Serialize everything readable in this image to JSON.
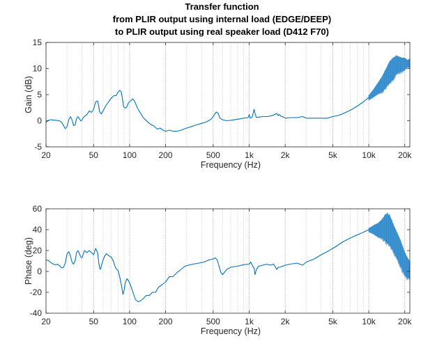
{
  "title_lines": [
    "Transfer function",
    "from PLIR output using internal load (EDGE/DEEP)",
    "to PLIR output using real speaker load (D412 F70)"
  ],
  "colors": {
    "series": "#0072bd",
    "axis": "#262626",
    "grid": "#b0b0b0"
  },
  "chart_data": [
    {
      "type": "line",
      "name": "gain-plot",
      "xlabel": "Frequency (Hz)",
      "ylabel": "Gain (dB)",
      "xscale": "log",
      "xlim": [
        20,
        22050
      ],
      "ylim": [
        -5,
        15
      ],
      "xticks": [
        20,
        50,
        100,
        200,
        500,
        1000,
        2000,
        5000,
        10000,
        20000
      ],
      "xtick_labels": [
        "20",
        "50",
        "100",
        "200",
        "500",
        "1k",
        "2k",
        "5k",
        "10k",
        "20k"
      ],
      "yticks": [
        -5,
        0,
        5,
        10,
        15
      ],
      "ytick_labels": [
        "-5",
        "0",
        "5",
        "10",
        "15"
      ],
      "grid": "x-minor-and-major",
      "series": [
        {
          "name": "Gain",
          "x": [
            20,
            21,
            22,
            24,
            26,
            27,
            28,
            29,
            30,
            31,
            32,
            33,
            34,
            35,
            36,
            37,
            38,
            39,
            40,
            41,
            42,
            44,
            46,
            48,
            50,
            52,
            54,
            55,
            56,
            58,
            60,
            63,
            66,
            70,
            74,
            77,
            80,
            83,
            85,
            87,
            89,
            92,
            95,
            98,
            102,
            106,
            110,
            115,
            120,
            130,
            140,
            150,
            160,
            170,
            180,
            190,
            200,
            215,
            230,
            250,
            270,
            300,
            330,
            360,
            400,
            440,
            480,
            510,
            530,
            550,
            570,
            600,
            650,
            700,
            800,
            900,
            980,
            1000,
            1020,
            1060,
            1100,
            1120,
            1150,
            1200,
            1300,
            1400,
            1500,
            1600,
            1700,
            1750,
            1800,
            1850,
            1900,
            2000,
            2200,
            2500,
            2800,
            3000,
            3500,
            4000,
            4500,
            5000,
            5500,
            6000,
            7000,
            8000,
            9000,
            10000
          ],
          "values": [
            -0.3,
            0.1,
            0.2,
            0.1,
            0.0,
            -0.3,
            -0.9,
            -1.5,
            -1.1,
            0.2,
            0.8,
            0.2,
            -0.9,
            -0.8,
            0.4,
            0.8,
            0.4,
            0.0,
            0.1,
            0.6,
            0.9,
            1.2,
            1.9,
            1.6,
            2.2,
            3.6,
            3.8,
            3.0,
            1.8,
            1.3,
            1.9,
            2.8,
            3.5,
            4.3,
            4.8,
            4.8,
            5.5,
            5.8,
            5.6,
            4.4,
            2.7,
            2.4,
            2.7,
            3.5,
            3.8,
            4.2,
            3.8,
            2.7,
            1.9,
            0.6,
            -0.1,
            -0.7,
            -1.0,
            -1.6,
            -1.4,
            -1.8,
            -2.0,
            -1.8,
            -2.0,
            -2.0,
            -1.8,
            -1.4,
            -1.1,
            -0.8,
            -0.5,
            -0.2,
            0.3,
            1.1,
            1.7,
            1.4,
            0.5,
            0.2,
            0.0,
            0.1,
            0.3,
            0.5,
            0.6,
            1.2,
            0.5,
            0.7,
            2.2,
            1.4,
            0.6,
            0.7,
            0.8,
            0.8,
            0.9,
            1.1,
            1.4,
            1.0,
            1.2,
            0.8,
            0.8,
            0.5,
            0.6,
            0.6,
            0.8,
            0.5,
            0.5,
            0.5,
            0.5,
            0.8,
            1.0,
            1.3,
            2.0,
            2.8,
            3.6,
            4.5
          ]
        }
      ],
      "noisy_band": {
        "x": [
          10000,
          11000,
          12000,
          13000,
          14000,
          15000,
          16000,
          17000,
          18000,
          19000,
          20000,
          21000,
          22050
        ],
        "upper": [
          4.8,
          6.0,
          7.3,
          8.5,
          10.0,
          11.3,
          12.0,
          12.4,
          12.2,
          12.0,
          12.0,
          11.6,
          11.8
        ],
        "lower": [
          4.0,
          4.6,
          5.2,
          5.6,
          6.5,
          7.3,
          8.0,
          9.0,
          9.3,
          9.5,
          9.8,
          10.3,
          10.2
        ]
      }
    },
    {
      "type": "line",
      "name": "phase-plot",
      "xlabel": "Frequency (Hz)",
      "ylabel": "Phase (deg)",
      "xscale": "log",
      "xlim": [
        20,
        22050
      ],
      "ylim": [
        -40,
        60
      ],
      "xticks": [
        20,
        50,
        100,
        200,
        500,
        1000,
        2000,
        5000,
        10000,
        20000
      ],
      "xtick_labels": [
        "20",
        "50",
        "100",
        "200",
        "500",
        "1k",
        "2k",
        "5k",
        "10k",
        "20k"
      ],
      "yticks": [
        -40,
        -20,
        0,
        20,
        40,
        60
      ],
      "ytick_labels": [
        "-40",
        "-20",
        "0",
        "20",
        "40",
        "60"
      ],
      "grid": "x-minor-and-major",
      "series": [
        {
          "name": "Phase",
          "x": [
            20,
            21,
            22,
            23,
            24,
            25,
            26,
            27,
            28,
            29,
            30,
            31,
            32,
            33,
            34,
            35,
            36,
            37,
            38,
            39,
            40,
            42,
            44,
            46,
            48,
            50,
            52,
            54,
            55,
            56,
            57,
            58,
            60,
            62,
            64,
            67,
            70,
            73,
            76,
            78,
            80,
            83,
            86,
            88,
            90,
            92,
            95,
            98,
            100,
            104,
            108,
            112,
            118,
            124,
            130,
            138,
            146,
            155,
            165,
            175,
            185,
            200,
            215,
            230,
            250,
            270,
            290,
            310,
            340,
            380,
            420,
            460,
            500,
            520,
            540,
            560,
            580,
            600,
            650,
            700,
            800,
            900,
            1000,
            1030,
            1070,
            1100,
            1120,
            1150,
            1200,
            1300,
            1400,
            1500,
            1600,
            1700,
            1750,
            1800,
            1900,
            2000,
            2200,
            2500,
            2800,
            3000,
            3500,
            4000,
            4500,
            5000,
            5500,
            6000,
            7000,
            8000,
            9000,
            10000
          ],
          "values": [
            11.0,
            10.5,
            8.5,
            7.0,
            6.5,
            6.8,
            5.5,
            3.5,
            4.0,
            8.0,
            17.0,
            19.0,
            15.0,
            9.0,
            7.0,
            10.0,
            18.0,
            20.0,
            17.0,
            14.0,
            13.0,
            20.0,
            18.0,
            20.0,
            18.0,
            16.0,
            22.0,
            18.0,
            10.0,
            4.0,
            2.0,
            5.0,
            11.0,
            15.0,
            17.0,
            15.0,
            14.0,
            10.0,
            4.0,
            2.0,
            1.0,
            -6.0,
            -15.0,
            -22.0,
            -18.0,
            -11.0,
            -7.0,
            -9.0,
            -11.0,
            -16.0,
            -22.0,
            -27.0,
            -29.0,
            -28.0,
            -26.0,
            -23.0,
            -23.0,
            -20.0,
            -20.0,
            -15.0,
            -13.0,
            -10.0,
            -5.0,
            -5.0,
            -1.0,
            2.0,
            5.0,
            6.0,
            7.0,
            8.0,
            9.0,
            11.0,
            12.0,
            13.0,
            11.0,
            5.0,
            -1.0,
            -3.0,
            2.0,
            4.0,
            5.0,
            6.5,
            7.0,
            9.0,
            5.0,
            3.0,
            -3.0,
            2.0,
            5.0,
            6.0,
            7.0,
            6.0,
            7.0,
            2.0,
            4.0,
            4.0,
            5.0,
            6.0,
            7.0,
            8.0,
            6.0,
            9.0,
            12.0,
            16.0,
            19.0,
            22.0,
            25.0,
            28.0,
            32.0,
            35.0,
            37.5,
            40.0
          ]
        }
      ],
      "noisy_band": {
        "x": [
          10000,
          11000,
          12000,
          13000,
          14000,
          15000,
          16000,
          17000,
          18000,
          19000,
          20000,
          21000,
          22050
        ],
        "upper": [
          41.0,
          44.0,
          46.0,
          50.0,
          55.0,
          53.0,
          45.0,
          38.0,
          32.0,
          25.0,
          18.0,
          13.0,
          9.0
        ],
        "lower": [
          38.0,
          36.0,
          33.0,
          32.0,
          28.0,
          25.0,
          20.0,
          14.0,
          8.0,
          2.0,
          -3.0,
          -6.0,
          -6.0
        ]
      }
    }
  ]
}
